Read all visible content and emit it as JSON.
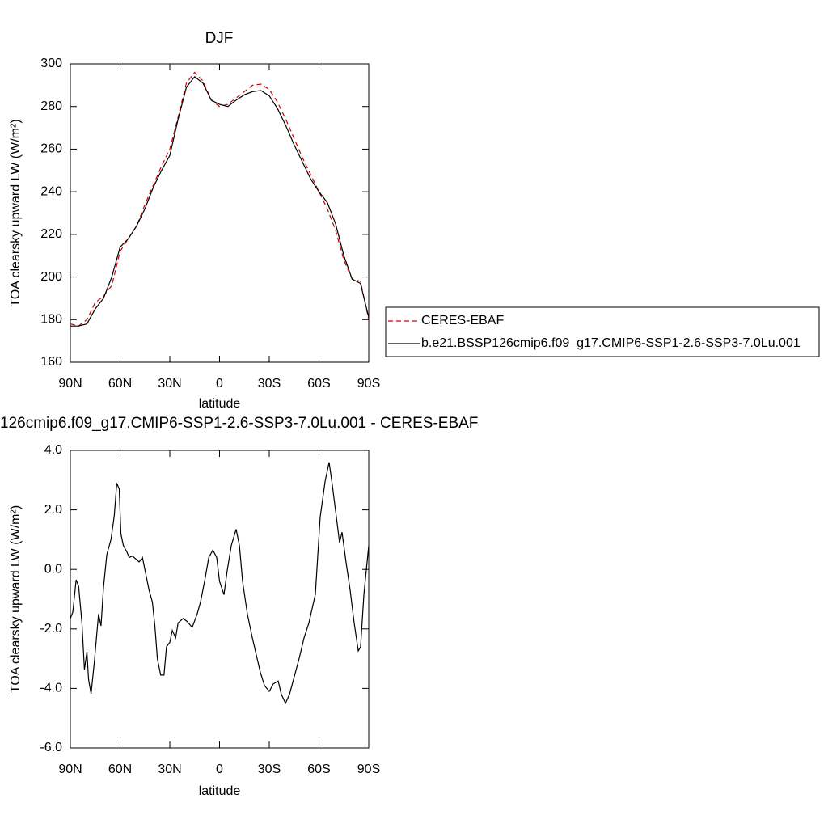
{
  "chart_data": [
    {
      "type": "line",
      "title": "DJF",
      "x_label": "latitude",
      "y_label": "TOA clearsky upward LW (W/m²)",
      "x": [
        90,
        85,
        80,
        75,
        70,
        65,
        60,
        55,
        50,
        45,
        40,
        35,
        30,
        25,
        20,
        15,
        10,
        5,
        0,
        -5,
        -10,
        -15,
        -20,
        -25,
        -30,
        -35,
        -40,
        -45,
        -50,
        -55,
        -60,
        -65,
        -70,
        -75,
        -80,
        -85,
        -90
      ],
      "series": [
        {
          "name": "CERES-EBAF",
          "color": "#cc0000",
          "dash": true,
          "values": [
            178,
            177,
            180,
            188,
            191,
            196,
            212,
            218,
            224,
            234,
            243,
            252,
            260,
            275,
            291,
            296,
            292,
            283,
            280,
            281,
            284,
            287,
            290,
            290.5,
            288,
            282,
            274,
            265,
            256,
            248,
            240,
            232,
            222,
            208,
            199,
            198,
            180
          ]
        },
        {
          "name": "b.e21.BSSP126cmip6.f09_g17.CMIP6-SSP1-2.6-SSP3-7.0Lu.001",
          "color": "#000000",
          "dash": false,
          "values": [
            177,
            177,
            178,
            185,
            190,
            200,
            214,
            218,
            224,
            232,
            242,
            250,
            257,
            274,
            289,
            294,
            291,
            283,
            281,
            280,
            283,
            285.5,
            287,
            287.5,
            285,
            279,
            271,
            262,
            254,
            246,
            240,
            235,
            225,
            210,
            199,
            197,
            181
          ]
        }
      ],
      "xlim": [
        90,
        -90
      ],
      "xticks": [
        {
          "value": 90,
          "label": "90N"
        },
        {
          "value": 60,
          "label": "60N"
        },
        {
          "value": 30,
          "label": "30N"
        },
        0,
        {
          "value": -30,
          "label": "30S"
        },
        {
          "value": -60,
          "label": "60S"
        },
        {
          "value": -90,
          "label": "90S"
        }
      ],
      "ylim": [
        160,
        300
      ],
      "yticks": [
        160,
        180,
        200,
        220,
        240,
        260,
        280,
        300
      ]
    },
    {
      "type": "line",
      "title": "126cmip6.f09_g17.CMIP6-SSP1-2.6-SSP3-7.0Lu.001 - CERES-EBAF",
      "x_label": "latitude",
      "y_label": "TOA clearsky upward LW (W/m²)",
      "color": "#000000",
      "x": [
        90,
        88.5,
        86.5,
        85,
        83,
        81.5,
        80,
        79,
        77.5,
        75.5,
        73,
        71.5,
        70,
        68,
        65.5,
        63.5,
        62,
        60.5,
        59.5,
        58,
        56,
        54.5,
        52.5,
        50.5,
        48.5,
        46.5,
        44.5,
        42.5,
        40.5,
        39,
        37.5,
        35.5,
        33.5,
        32,
        30,
        28.5,
        26.5,
        25,
        22,
        19.5,
        16.5,
        13.5,
        11.5,
        9,
        6.5,
        4,
        1.7,
        0,
        -2.7,
        -4.6,
        -7.1,
        -10,
        -12,
        -13.9,
        -16.8,
        -19.8,
        -22.7,
        -24.6,
        -27.1,
        -30,
        -32.4,
        -35.4,
        -37.3,
        -39.8,
        -42.2,
        -45.1,
        -48,
        -51,
        -53.9,
        -57.8,
        -60.7,
        -63.7,
        -66.1,
        -68,
        -70.5,
        -72.4,
        -73.9,
        -76.3,
        -78.8,
        -81.2,
        -83.7,
        -85.1,
        -87.1,
        -90
      ],
      "values": [
        -1.65,
        -1.43,
        -0.35,
        -0.57,
        -1.8,
        -3.37,
        -2.77,
        -3.7,
        -4.18,
        -3.1,
        -1.5,
        -1.9,
        -0.6,
        0.5,
        1.0,
        1.8,
        2.9,
        2.7,
        1.2,
        0.8,
        0.6,
        0.4,
        0.45,
        0.35,
        0.25,
        0.4,
        -0.15,
        -0.7,
        -1.1,
        -1.9,
        -3.0,
        -3.55,
        -3.55,
        -2.6,
        -2.45,
        -2.05,
        -2.3,
        -1.8,
        -1.65,
        -1.75,
        -1.95,
        -1.5,
        -1.1,
        -0.4,
        0.4,
        0.65,
        0.4,
        -0.4,
        -0.85,
        -0.05,
        0.8,
        1.35,
        0.8,
        -0.4,
        -1.5,
        -2.3,
        -3.0,
        -3.45,
        -3.9,
        -4.1,
        -3.85,
        -3.75,
        -4.2,
        -4.5,
        -4.2,
        -3.6,
        -3.0,
        -2.3,
        -1.8,
        -0.84,
        1.75,
        2.96,
        3.6,
        2.85,
        1.75,
        0.9,
        1.25,
        0.25,
        -0.7,
        -1.79,
        -2.74,
        -2.6,
        -0.84,
        0.8
      ],
      "xlim": [
        90,
        -90
      ],
      "xticks": [
        {
          "value": 90,
          "label": "90N"
        },
        {
          "value": 60,
          "label": "60N"
        },
        {
          "value": 30,
          "label": "30N"
        },
        0,
        {
          "value": -30,
          "label": "30S"
        },
        {
          "value": -60,
          "label": "60S"
        },
        {
          "value": -90,
          "label": "90S"
        }
      ],
      "ylim": [
        -6,
        4
      ],
      "yticks": [
        {
          "value": -6,
          "label": "-6.0"
        },
        {
          "value": -4,
          "label": "-4.0"
        },
        {
          "value": -2,
          "label": "-2.0"
        },
        {
          "value": 0,
          "label": "0.0"
        },
        {
          "value": 2,
          "label": "2.0"
        },
        {
          "value": 4,
          "label": "4.0"
        }
      ]
    }
  ]
}
